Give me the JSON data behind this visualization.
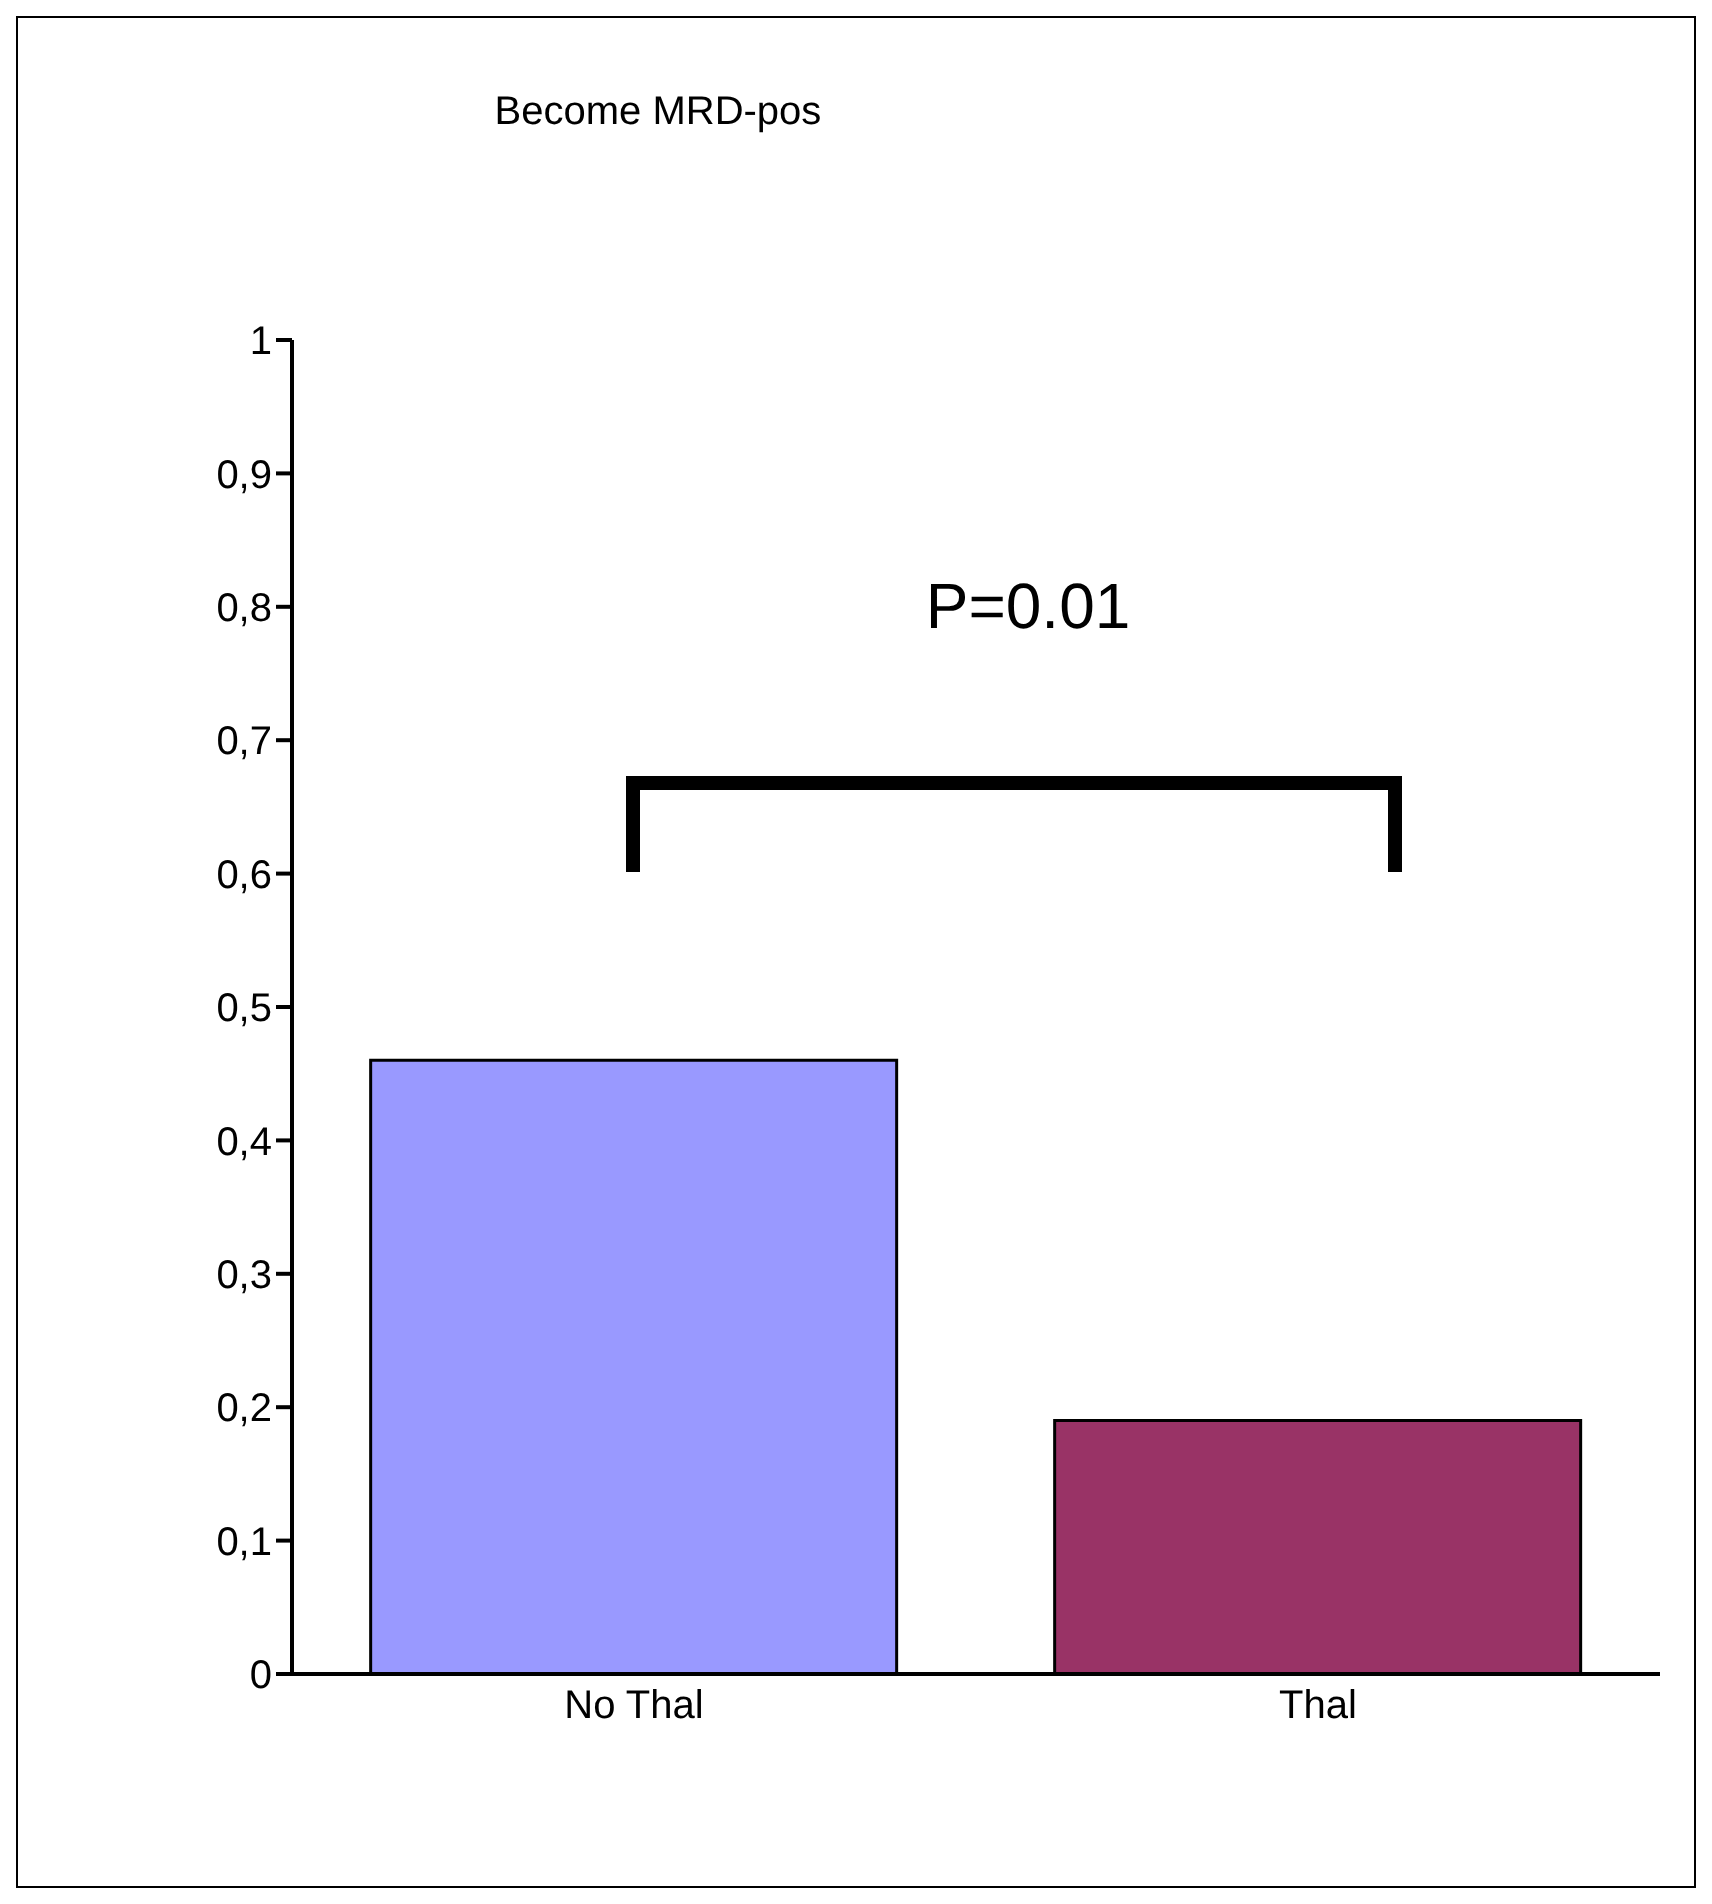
{
  "chart_data": {
    "type": "bar",
    "title": "Become MRD-pos",
    "categories": [
      "No Thal",
      "Thal"
    ],
    "values": [
      0.46,
      0.19
    ],
    "colors": [
      "#9999ff",
      "#993366"
    ],
    "ylim": [
      0,
      1
    ],
    "yticks": [
      0,
      {
        "value": 0.1,
        "label": "0,1"
      },
      {
        "value": 0.2,
        "label": "0,2"
      },
      {
        "value": 0.3,
        "label": "0,3"
      },
      {
        "value": 0.4,
        "label": "0,4"
      },
      {
        "value": 0.5,
        "label": "0,5"
      },
      {
        "value": 0.6,
        "label": "0,6"
      },
      {
        "value": 0.7,
        "label": "0,7"
      },
      {
        "value": 0.8,
        "label": "0,8"
      },
      {
        "value": 0.9,
        "label": "0,9"
      },
      1
    ],
    "annotations": [
      "P=0.01"
    ],
    "grid": false,
    "legend": false
  }
}
